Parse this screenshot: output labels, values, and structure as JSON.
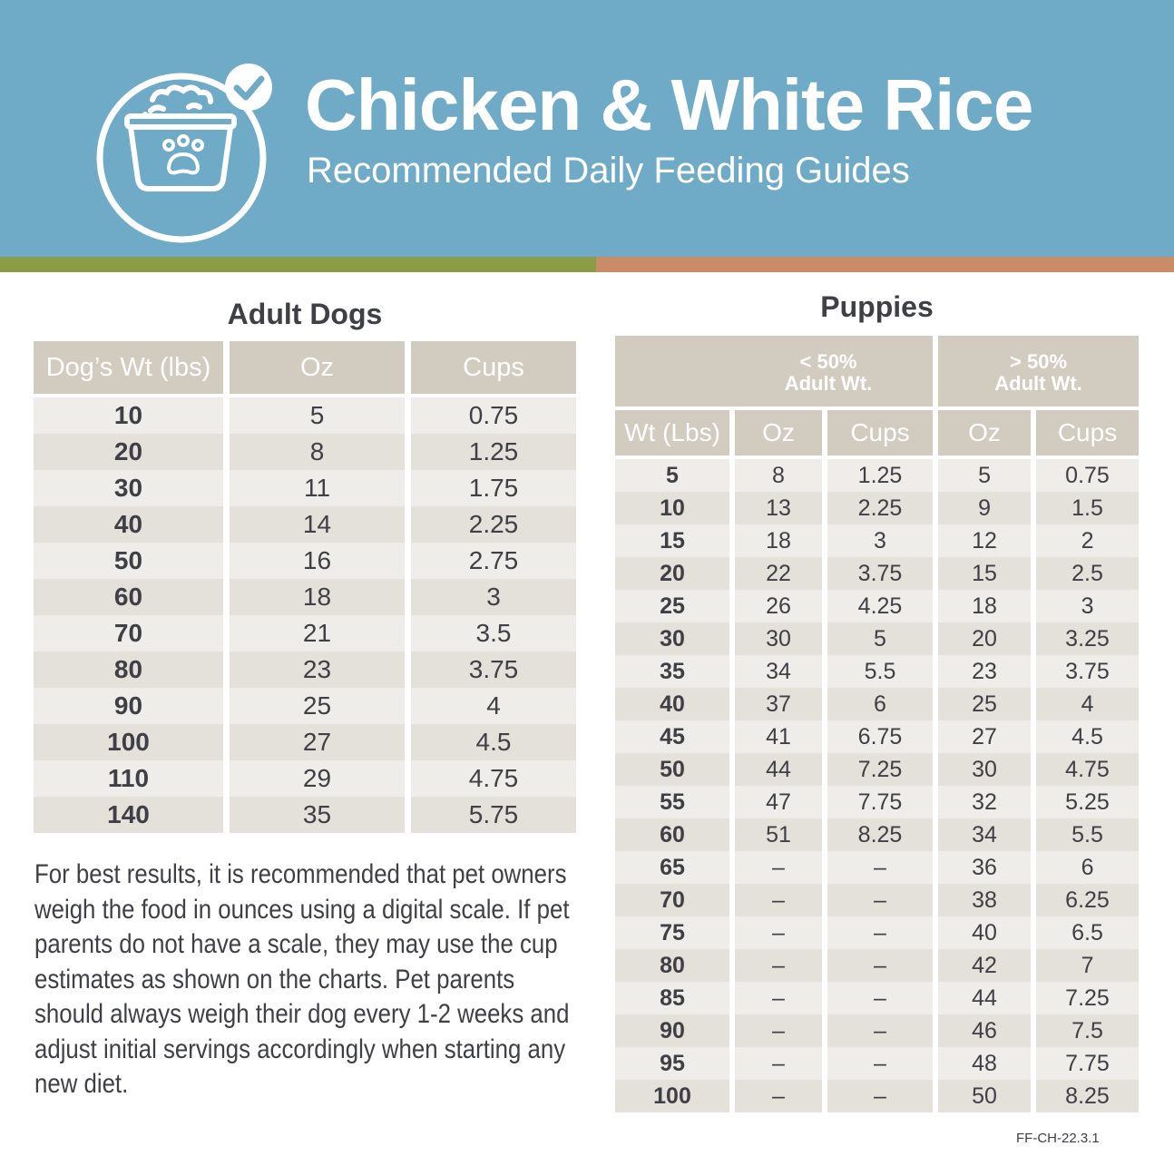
{
  "header": {
    "title": "Chicken & White Rice",
    "subtitle": "Recommended Daily Feeding Guides",
    "logo_icon": "food-bowl-check-icon"
  },
  "colors": {
    "header_bg": "#6fabc6",
    "stripe_green": "#8a9d44",
    "stripe_orange": "#c98c66",
    "table_header": "#d2ccc0",
    "row_light": "#efedea",
    "row_dark": "#e4e0da"
  },
  "adult": {
    "title": "Adult Dogs",
    "columns": [
      "Dog’s Wt (lbs)",
      "Oz",
      "Cups"
    ],
    "rows": [
      [
        "10",
        "5",
        "0.75"
      ],
      [
        "20",
        "8",
        "1.25"
      ],
      [
        "30",
        "11",
        "1.75"
      ],
      [
        "40",
        "14",
        "2.25"
      ],
      [
        "50",
        "16",
        "2.75"
      ],
      [
        "60",
        "18",
        "3"
      ],
      [
        "70",
        "21",
        "3.5"
      ],
      [
        "80",
        "23",
        "3.75"
      ],
      [
        "90",
        "25",
        "4"
      ],
      [
        "100",
        "27",
        "4.5"
      ],
      [
        "110",
        "29",
        "4.75"
      ],
      [
        "140",
        "35",
        "5.75"
      ]
    ]
  },
  "note": "For best results, it is recommended that pet owners weigh the food in ounces using a digital scale. If pet parents do not have a scale, they may use the cup estimates as shown on the charts. Pet parents should always weigh their dog every 1-2 weeks and adjust initial servings accordingly when starting any new diet.",
  "puppies": {
    "title": "Puppies",
    "groups": [
      {
        "line1": "< 50%",
        "line2": "Adult Wt."
      },
      {
        "line1": "> 50%",
        "line2": "Adult Wt."
      }
    ],
    "columns": [
      "Wt (Lbs)",
      "Oz",
      "Cups",
      "Oz",
      "Cups"
    ],
    "rows": [
      [
        "5",
        "8",
        "1.25",
        "5",
        "0.75"
      ],
      [
        "10",
        "13",
        "2.25",
        "9",
        "1.5"
      ],
      [
        "15",
        "18",
        "3",
        "12",
        "2"
      ],
      [
        "20",
        "22",
        "3.75",
        "15",
        "2.5"
      ],
      [
        "25",
        "26",
        "4.25",
        "18",
        "3"
      ],
      [
        "30",
        "30",
        "5",
        "20",
        "3.25"
      ],
      [
        "35",
        "34",
        "5.5",
        "23",
        "3.75"
      ],
      [
        "40",
        "37",
        "6",
        "25",
        "4"
      ],
      [
        "45",
        "41",
        "6.75",
        "27",
        "4.5"
      ],
      [
        "50",
        "44",
        "7.25",
        "30",
        "4.75"
      ],
      [
        "55",
        "47",
        "7.75",
        "32",
        "5.25"
      ],
      [
        "60",
        "51",
        "8.25",
        "34",
        "5.5"
      ],
      [
        "65",
        "–",
        "–",
        "36",
        "6"
      ],
      [
        "70",
        "–",
        "–",
        "38",
        "6.25"
      ],
      [
        "75",
        "–",
        "–",
        "40",
        "6.5"
      ],
      [
        "80",
        "–",
        "–",
        "42",
        "7"
      ],
      [
        "85",
        "–",
        "–",
        "44",
        "7.25"
      ],
      [
        "90",
        "–",
        "–",
        "46",
        "7.5"
      ],
      [
        "95",
        "–",
        "–",
        "48",
        "7.75"
      ],
      [
        "100",
        "–",
        "–",
        "50",
        "8.25"
      ]
    ]
  },
  "footer_code": "FF-CH-22.3.1"
}
